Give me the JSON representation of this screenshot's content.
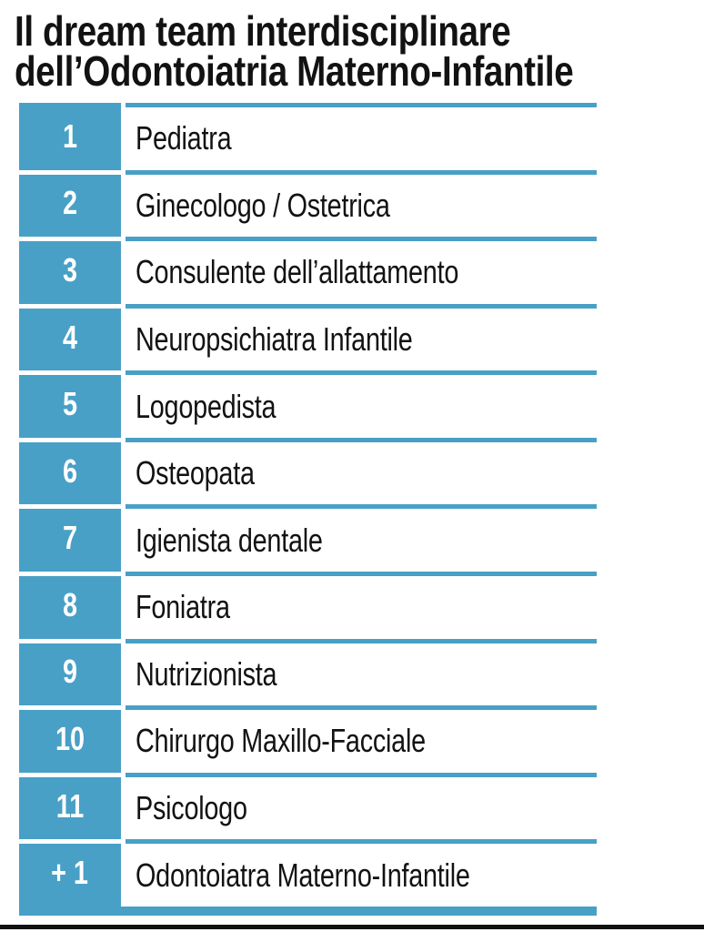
{
  "title": {
    "line1": "Il dream team interdisciplinare",
    "line2": "dell’Odontoiatria Materno-Infantile"
  },
  "colors": {
    "accent_blue": "#48A0C6",
    "text_black": "#121212",
    "number_white": "#FFFFFF",
    "bottom_rule_black": "#111111"
  },
  "table": {
    "rows": [
      {
        "number": "1",
        "label": "Pediatra"
      },
      {
        "number": "2",
        "label": "Ginecologo / Ostetrica"
      },
      {
        "number": "3",
        "label": "Consulente dell’allattamento"
      },
      {
        "number": "4",
        "label": "Neuropsichiatra Infantile"
      },
      {
        "number": "5",
        "label": "Logopedista"
      },
      {
        "number": "6",
        "label": "Osteopata"
      },
      {
        "number": "7",
        "label": "Igienista dentale"
      },
      {
        "number": "8",
        "label": "Foniatra"
      },
      {
        "number": "9",
        "label": "Nutrizionista"
      },
      {
        "number": "10",
        "label": "Chirurgo Maxillo-Facciale"
      },
      {
        "number": "11",
        "label": "Psicologo"
      },
      {
        "number": "+ 1",
        "label": "Odontoiatra Materno-Infantile"
      }
    ]
  }
}
